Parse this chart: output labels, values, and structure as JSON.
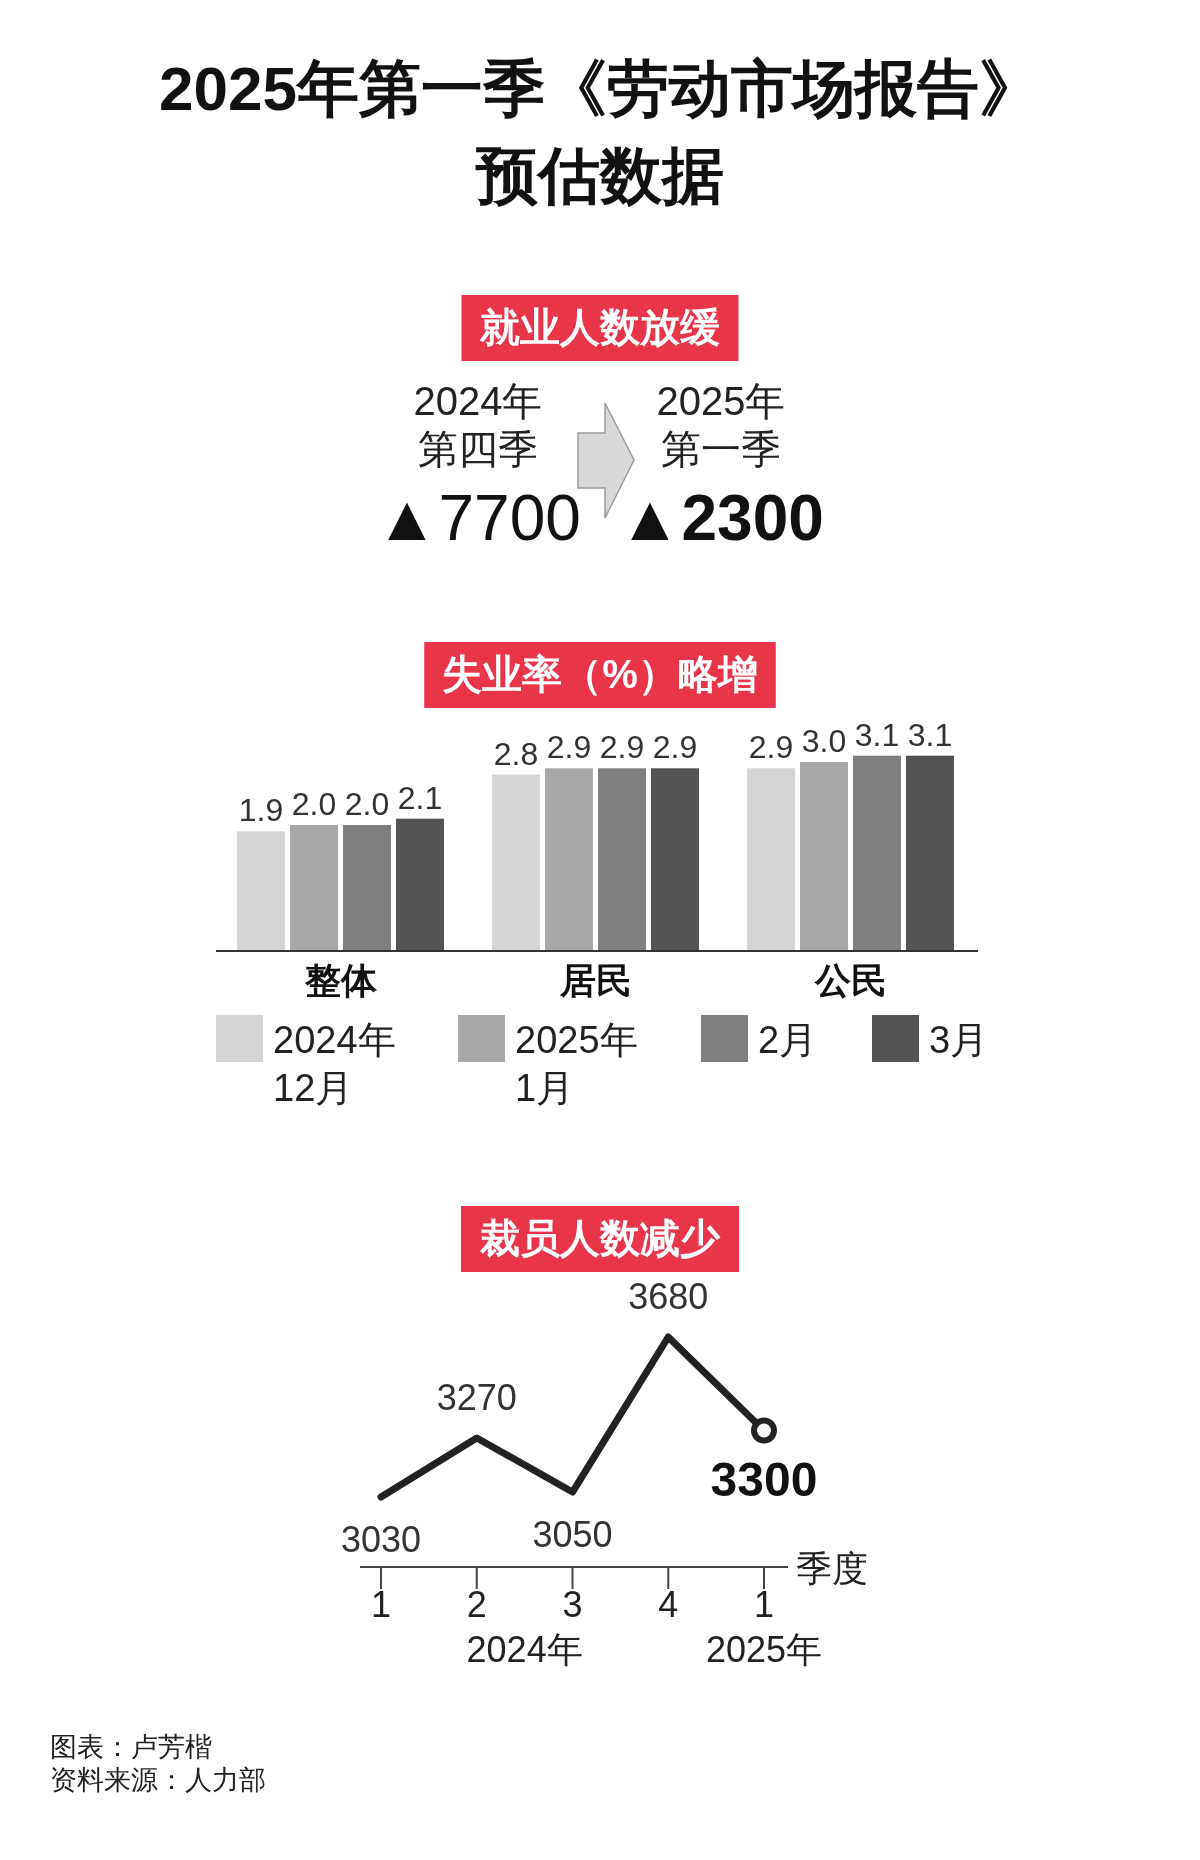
{
  "chart_data": [
    {
      "type": "other",
      "title": "2025年第一季《劳动市场报告》预估数据",
      "subtitle": "就业人数放缓",
      "annotations": [
        "2024年",
        "第四季",
        "▲7700",
        "2025年",
        "第一季",
        "▲2300"
      ]
    },
    {
      "type": "bar",
      "title": "失业率（%）略增",
      "categories": [
        "整体",
        "居民",
        "公民"
      ],
      "series": [
        {
          "name": "2024年12月",
          "color": "#d4d4d6",
          "values": [
            1.9,
            2.8,
            2.9
          ],
          "value_labels": [
            "1.9",
            "2.8",
            "2.9"
          ]
        },
        {
          "name": "2025年1月",
          "color": "#a8a8ab",
          "values": [
            2.0,
            2.9,
            3.0
          ],
          "value_labels": [
            "2.0",
            "2.9",
            "3.0"
          ]
        },
        {
          "name": "2月",
          "color": "#7f7f82",
          "values": [
            2.0,
            2.9,
            3.1
          ],
          "value_labels": [
            "2.0",
            "2.9",
            "3.1"
          ]
        },
        {
          "name": "3月",
          "color": "#545456",
          "values": [
            2.1,
            2.9,
            3.1
          ],
          "value_labels": [
            "2.1",
            "2.9",
            "3.1"
          ]
        }
      ],
      "legend": "bottom"
    },
    {
      "type": "line",
      "title": "裁员人数减少",
      "categories": [
        "1",
        "2",
        "3",
        "4",
        "1"
      ],
      "xlabel": "季度",
      "values": [
        3030,
        3270,
        3050,
        3680,
        3300
      ],
      "color": "#222222",
      "value_labels": [
        "3030",
        "3270",
        "3050",
        "3680",
        "**3300**"
      ],
      "annotations": [
        "2024年",
        "2025年",
        "图表：卢芳楷",
        "资料来源：人力部"
      ]
    }
  ]
}
